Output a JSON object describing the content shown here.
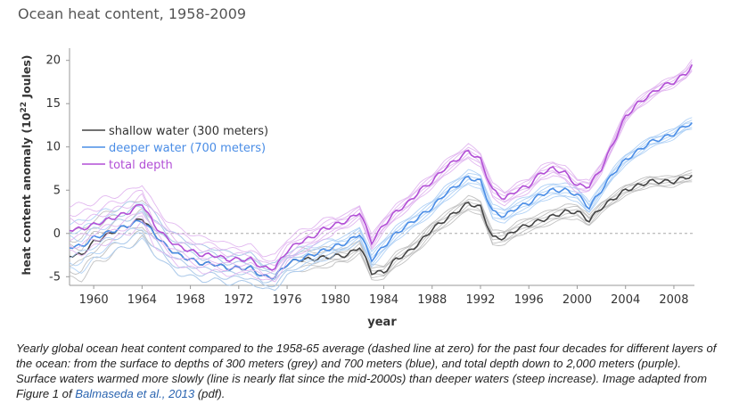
{
  "chart_data": {
    "type": "line",
    "title": "Ocean heat content, 1958-2009",
    "xlabel": "year",
    "ylabel": "heat content anomaly (10^22 Joules)",
    "xlim": [
      1958,
      2009.7
    ],
    "ylim": [
      -6,
      21
    ],
    "xticks": [
      1960,
      1964,
      1968,
      1972,
      1976,
      1980,
      1984,
      1988,
      1992,
      1996,
      2000,
      2004,
      2008
    ],
    "yticks": [
      -5,
      0,
      5,
      10,
      15,
      20
    ],
    "grid": false,
    "legend_position": "middle-left",
    "reference_line": {
      "y": 0,
      "style": "dashed"
    },
    "series": [
      {
        "name": "shallow water (300 meters)",
        "color": "#444444",
        "band_color": "#bbbbbb",
        "x": [
          1958,
          1959,
          1960,
          1961,
          1962,
          1963,
          1964,
          1965,
          1966,
          1967,
          1968,
          1969,
          1970,
          1971,
          1972,
          1973,
          1974,
          1975,
          1976,
          1977,
          1978,
          1979,
          1980,
          1981,
          1982,
          1983,
          1984,
          1985,
          1986,
          1987,
          1988,
          1989,
          1990,
          1991,
          1992,
          1993,
          1994,
          1995,
          1996,
          1997,
          1998,
          1999,
          2000,
          2001,
          2002,
          2003,
          2004,
          2005,
          2006,
          2007,
          2008,
          2009,
          2009.7
        ],
        "y": [
          -2.5,
          -2.5,
          -1.0,
          -0.3,
          0.5,
          1.0,
          1.8,
          0.0,
          -1.5,
          -2.5,
          -3.0,
          -3.5,
          -3.5,
          -4.0,
          -4.0,
          -4.0,
          -5.0,
          -5.0,
          -3.5,
          -3.0,
          -3.0,
          -2.8,
          -2.6,
          -2.5,
          -1.5,
          -4.5,
          -4.5,
          -3.0,
          -2.2,
          -1.0,
          0.5,
          1.5,
          2.5,
          3.5,
          3.0,
          -0.5,
          -0.5,
          0.5,
          1.0,
          1.5,
          2.0,
          2.5,
          2.5,
          1.5,
          3.0,
          4.0,
          5.0,
          5.5,
          6.0,
          6.0,
          6.0,
          6.5,
          6.7
        ]
      },
      {
        "name": "deeper water (700 meters)",
        "color": "#4a8de6",
        "band_color": "#a9cdf5",
        "x": [
          1958,
          1959,
          1960,
          1961,
          1962,
          1963,
          1964,
          1965,
          1966,
          1967,
          1968,
          1969,
          1970,
          1971,
          1972,
          1973,
          1974,
          1975,
          1976,
          1977,
          1978,
          1979,
          1980,
          1981,
          1982,
          1983,
          1984,
          1985,
          1986,
          1987,
          1988,
          1989,
          1990,
          1991,
          1992,
          1993,
          1994,
          1995,
          1996,
          1997,
          1998,
          1999,
          2000,
          2001,
          2002,
          2003,
          2004,
          2005,
          2006,
          2007,
          2008,
          2009,
          2009.7
        ],
        "y": [
          -1.5,
          -1.5,
          -0.5,
          0.0,
          0.5,
          1.0,
          1.5,
          0.0,
          -1.5,
          -2.5,
          -3.0,
          -3.5,
          -3.5,
          -4.0,
          -4.0,
          -4.0,
          -5.0,
          -5.0,
          -3.5,
          -3.0,
          -2.5,
          -2.0,
          -1.5,
          -1.0,
          0.0,
          -3.0,
          -1.5,
          0.0,
          1.0,
          2.0,
          3.0,
          4.5,
          5.5,
          6.5,
          6.0,
          2.5,
          2.0,
          3.0,
          3.5,
          4.5,
          5.0,
          5.0,
          4.5,
          3.0,
          5.0,
          7.0,
          8.5,
          9.5,
          10.5,
          11.0,
          11.5,
          12.5,
          12.8
        ]
      },
      {
        "name": "total depth",
        "color": "#b24fd6",
        "band_color": "#dfb0ee",
        "x": [
          1958,
          1959,
          1960,
          1961,
          1962,
          1963,
          1964,
          1965,
          1966,
          1967,
          1968,
          1969,
          1970,
          1971,
          1972,
          1973,
          1974,
          1975,
          1976,
          1977,
          1978,
          1979,
          1980,
          1981,
          1982,
          1983,
          1984,
          1985,
          1986,
          1987,
          1988,
          1989,
          1990,
          1991,
          1992,
          1993,
          1994,
          1995,
          1996,
          1997,
          1998,
          1999,
          2000,
          2001,
          2002,
          2003,
          2004,
          2005,
          2006,
          2007,
          2008,
          2009,
          2009.7
        ],
        "y": [
          0.5,
          0.5,
          1.0,
          1.5,
          2.0,
          2.5,
          3.5,
          1.0,
          -0.5,
          -1.5,
          -2.0,
          -2.5,
          -2.5,
          -3.0,
          -3.0,
          -3.0,
          -4.0,
          -4.0,
          -2.0,
          -1.0,
          -0.5,
          0.5,
          1.0,
          1.5,
          2.5,
          -1.0,
          1.0,
          2.5,
          3.5,
          5.0,
          6.0,
          7.5,
          8.5,
          9.5,
          8.5,
          5.0,
          4.0,
          5.0,
          5.5,
          7.0,
          7.5,
          7.0,
          5.5,
          5.5,
          7.5,
          10.5,
          13.5,
          15.0,
          16.0,
          17.0,
          17.5,
          18.5,
          19.8
        ]
      }
    ]
  },
  "caption": {
    "text_before": "Yearly global ocean heat content compared to the 1958-65 average (dashed line at zero) for the past four decades for different layers of the ocean: from the surface to depths of 300 meters (grey) and 700 meters (blue), and total depth down to 2,000 meters (purple). Surface waters warmed more slowly (line is nearly flat since the mid-2000s) than deeper waters (steep increase). Image adapted from Figure 1 of ",
    "link_text": "Balmaseda et al., 2013",
    "text_after": " (pdf)."
  }
}
